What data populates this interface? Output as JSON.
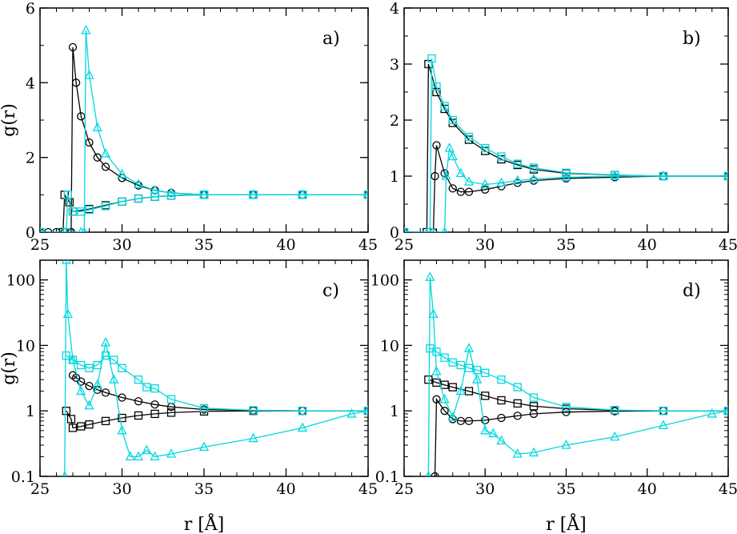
{
  "colors": {
    "black": "#000000",
    "cyan": "#00d8e0"
  },
  "chart_data": [
    {
      "type": "line",
      "panel_label": "a)",
      "ylabel": "g(r)",
      "xlabel": "",
      "xlim": [
        25,
        45
      ],
      "ylim": [
        0,
        6
      ],
      "yscale": "linear",
      "xticks": [
        "25",
        "30",
        "35",
        "40",
        "45"
      ],
      "yticks": [
        "0",
        "2",
        "4",
        "6"
      ],
      "series": [
        {
          "marker": "circle",
          "color": "black",
          "x": [
            25,
            25.5,
            26,
            26.5,
            26.9,
            27,
            27.2,
            27.5,
            28,
            28.5,
            29,
            30,
            31,
            32,
            33,
            35,
            38,
            41,
            45
          ],
          "y": [
            0,
            0,
            0,
            0,
            0,
            4.95,
            4.0,
            3.1,
            2.4,
            2.0,
            1.75,
            1.45,
            1.25,
            1.12,
            1.05,
            1.0,
            1.0,
            1.0,
            1.0
          ]
        },
        {
          "marker": "square",
          "color": "black",
          "x": [
            25,
            26.4,
            26.5,
            26.8,
            27,
            28,
            29,
            30,
            31,
            32,
            33,
            35,
            38,
            41,
            45
          ],
          "y": [
            0,
            0,
            1.0,
            0.8,
            0.55,
            0.62,
            0.72,
            0.82,
            0.9,
            0.95,
            0.98,
            1.0,
            1.0,
            1.0,
            1.0
          ]
        },
        {
          "marker": "triangle",
          "color": "cyan",
          "x": [
            25,
            27.5,
            27.7,
            27.8,
            28,
            28.5,
            29,
            30,
            31,
            32,
            33,
            35,
            38,
            41,
            45
          ],
          "y": [
            0,
            0,
            0,
            5.4,
            4.2,
            2.8,
            2.1,
            1.55,
            1.28,
            1.12,
            1.05,
            1.0,
            1.0,
            1.0,
            1.0
          ]
        },
        {
          "marker": "square",
          "color": "cyan",
          "x": [
            25,
            26.6,
            26.7,
            27,
            27.5,
            28,
            29,
            30,
            31,
            32,
            33,
            35,
            38,
            41,
            45
          ],
          "y": [
            0,
            0,
            1.0,
            0.55,
            0.55,
            0.6,
            0.7,
            0.82,
            0.9,
            0.95,
            0.98,
            1.0,
            1.0,
            1.0,
            1.0
          ]
        }
      ]
    },
    {
      "type": "line",
      "panel_label": "b)",
      "ylabel": "",
      "xlabel": "",
      "xlim": [
        25,
        45
      ],
      "ylim": [
        0,
        4
      ],
      "yscale": "linear",
      "xticks": [
        "25",
        "30",
        "35",
        "40",
        "45"
      ],
      "yticks": [
        "0",
        "1",
        "2",
        "3",
        "4"
      ],
      "series": [
        {
          "marker": "square",
          "color": "black",
          "x": [
            25,
            26.4,
            26.5,
            27,
            27.5,
            28,
            29,
            30,
            31,
            32,
            33,
            35,
            38,
            41,
            45
          ],
          "y": [
            0,
            0,
            3.0,
            2.5,
            2.2,
            1.95,
            1.65,
            1.45,
            1.3,
            1.2,
            1.12,
            1.05,
            1.02,
            1.0,
            1.0
          ]
        },
        {
          "marker": "circle",
          "color": "black",
          "x": [
            25,
            26.8,
            26.9,
            27,
            27.5,
            28,
            28.5,
            29,
            30,
            31,
            32,
            33,
            35,
            38,
            41,
            45
          ],
          "y": [
            0,
            0,
            1.0,
            1.55,
            1.05,
            0.78,
            0.72,
            0.72,
            0.76,
            0.82,
            0.88,
            0.92,
            0.96,
            0.98,
            1.0,
            1.0
          ]
        },
        {
          "marker": "square",
          "color": "cyan",
          "x": [
            25,
            26.6,
            26.7,
            27,
            27.5,
            28,
            29,
            30,
            31,
            32,
            33,
            35,
            38,
            41,
            45
          ],
          "y": [
            0,
            0,
            3.1,
            2.6,
            2.25,
            2.0,
            1.7,
            1.5,
            1.35,
            1.22,
            1.15,
            1.06,
            1.02,
            1.0,
            1.0
          ]
        },
        {
          "marker": "triangle",
          "color": "cyan",
          "x": [
            25,
            27.5,
            27.6,
            27.8,
            28,
            28.5,
            29,
            30,
            31,
            32,
            33,
            35,
            38,
            41,
            45
          ],
          "y": [
            0,
            0,
            1.0,
            1.5,
            1.35,
            1.05,
            0.9,
            0.85,
            0.88,
            0.92,
            0.95,
            0.98,
            1.0,
            1.0,
            1.0
          ]
        }
      ]
    },
    {
      "type": "line",
      "panel_label": "c)",
      "ylabel": "g(r)",
      "xlabel": "r [Å]",
      "xlim": [
        25,
        45
      ],
      "ylim": [
        0.1,
        200
      ],
      "yscale": "log",
      "xticks": [
        "25",
        "30",
        "35",
        "40",
        "45"
      ],
      "yticks": [
        "0.1",
        "1",
        "10",
        "100"
      ],
      "series": [
        {
          "marker": "square",
          "color": "black",
          "x": [
            26.6,
            26.9,
            27,
            27.5,
            28,
            29,
            30,
            31,
            32,
            33,
            35,
            38,
            41,
            45
          ],
          "y": [
            1.0,
            0.75,
            0.55,
            0.58,
            0.62,
            0.7,
            0.78,
            0.85,
            0.9,
            0.94,
            0.98,
            1.0,
            1.0,
            1.0
          ]
        },
        {
          "marker": "circle",
          "color": "black",
          "x": [
            27,
            27.2,
            27.5,
            28,
            28.5,
            29,
            30,
            31,
            32,
            33,
            35,
            38,
            41,
            45
          ],
          "y": [
            3.5,
            3.2,
            2.8,
            2.4,
            2.1,
            1.9,
            1.6,
            1.4,
            1.25,
            1.15,
            1.05,
            1.02,
            1.0,
            1.0
          ]
        },
        {
          "marker": "triangle",
          "color": "cyan",
          "x": [
            26.5,
            26.6,
            26.7,
            27,
            27.5,
            28,
            28.5,
            29,
            29.5,
            30,
            30.5,
            31,
            31.5,
            32,
            33,
            35,
            38,
            41,
            44,
            45
          ],
          "y": [
            0.1,
            200,
            30,
            6,
            2,
            1.2,
            2.5,
            11,
            3,
            0.5,
            0.2,
            0.2,
            0.25,
            0.2,
            0.22,
            0.28,
            0.38,
            0.55,
            0.9,
            1.0
          ]
        },
        {
          "marker": "square",
          "color": "cyan",
          "x": [
            26.6,
            27,
            27.5,
            28,
            28.5,
            29,
            29.5,
            30,
            31,
            31.5,
            32,
            33,
            35,
            38,
            41,
            45
          ],
          "y": [
            7,
            6,
            5,
            4.5,
            5,
            7,
            6,
            4.5,
            3,
            2.3,
            2.2,
            1.5,
            1.1,
            1.02,
            1.0,
            1.0
          ]
        }
      ]
    },
    {
      "type": "line",
      "panel_label": "d)",
      "ylabel": "",
      "xlabel": "r [Å]",
      "xlim": [
        25,
        45
      ],
      "ylim": [
        0.1,
        200
      ],
      "yscale": "log",
      "xticks": [
        "25",
        "30",
        "35",
        "40",
        "45"
      ],
      "yticks": [
        "0.1",
        "1",
        "10",
        "100"
      ],
      "series": [
        {
          "marker": "square",
          "color": "black",
          "x": [
            26.5,
            27,
            27.5,
            28,
            29,
            30,
            31,
            32,
            33,
            35,
            38,
            41,
            45
          ],
          "y": [
            3.0,
            2.7,
            2.5,
            2.3,
            2.0,
            1.7,
            1.45,
            1.3,
            1.18,
            1.08,
            1.02,
            1.0,
            1.0
          ]
        },
        {
          "marker": "circle",
          "color": "black",
          "x": [
            26.9,
            27,
            27.5,
            28,
            28.5,
            29,
            30,
            31,
            32,
            33,
            35,
            38,
            41,
            45
          ],
          "y": [
            0.1,
            1.5,
            1.0,
            0.75,
            0.7,
            0.7,
            0.72,
            0.78,
            0.84,
            0.9,
            0.96,
            0.99,
            1.0,
            1.0
          ]
        },
        {
          "marker": "triangle",
          "color": "cyan",
          "x": [
            26.5,
            26.6,
            26.8,
            27,
            27.5,
            28,
            28.5,
            29,
            29.5,
            30,
            30.5,
            31,
            32,
            33,
            35,
            38,
            41,
            44,
            45
          ],
          "y": [
            0.1,
            110,
            30,
            4,
            1.5,
            0.8,
            2,
            9,
            3,
            0.5,
            0.45,
            0.35,
            0.22,
            0.23,
            0.3,
            0.4,
            0.6,
            0.9,
            1.0
          ]
        },
        {
          "marker": "square",
          "color": "cyan",
          "x": [
            26.6,
            27,
            27.5,
            28,
            28.5,
            29,
            29.5,
            30,
            31,
            32,
            33,
            35,
            38,
            41,
            45
          ],
          "y": [
            9,
            8,
            6.5,
            5.5,
            5,
            4.5,
            4.2,
            3.8,
            3,
            2.3,
            1.6,
            1.15,
            1.03,
            1.0,
            1.0
          ]
        }
      ]
    }
  ]
}
